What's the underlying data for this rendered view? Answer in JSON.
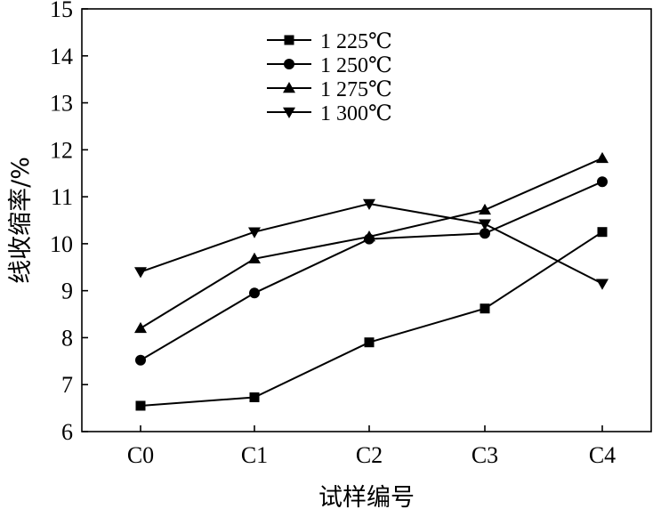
{
  "chart_data": {
    "type": "line",
    "xlabel": "试样编号",
    "ylabel": "线收缩率/%",
    "categories": [
      "C0",
      "C1",
      "C2",
      "C3",
      "C4"
    ],
    "ylim": [
      6,
      15
    ],
    "yticks": [
      "6",
      "7",
      "8",
      "9",
      "10",
      "11",
      "12",
      "13",
      "14",
      "15"
    ],
    "grid": false,
    "legend_position": "top-left",
    "series": [
      {
        "name": "1 225℃",
        "marker": "square",
        "values": [
          6.55,
          6.73,
          7.9,
          8.62,
          10.25
        ]
      },
      {
        "name": "1 250℃",
        "marker": "circle",
        "values": [
          7.52,
          8.95,
          10.1,
          10.22,
          11.32
        ]
      },
      {
        "name": "1 275℃",
        "marker": "triangle-up",
        "values": [
          8.2,
          9.68,
          10.15,
          10.72,
          11.82
        ]
      },
      {
        "name": "1 300℃",
        "marker": "triangle-down",
        "values": [
          9.4,
          10.25,
          10.85,
          10.42,
          9.15
        ]
      }
    ]
  }
}
